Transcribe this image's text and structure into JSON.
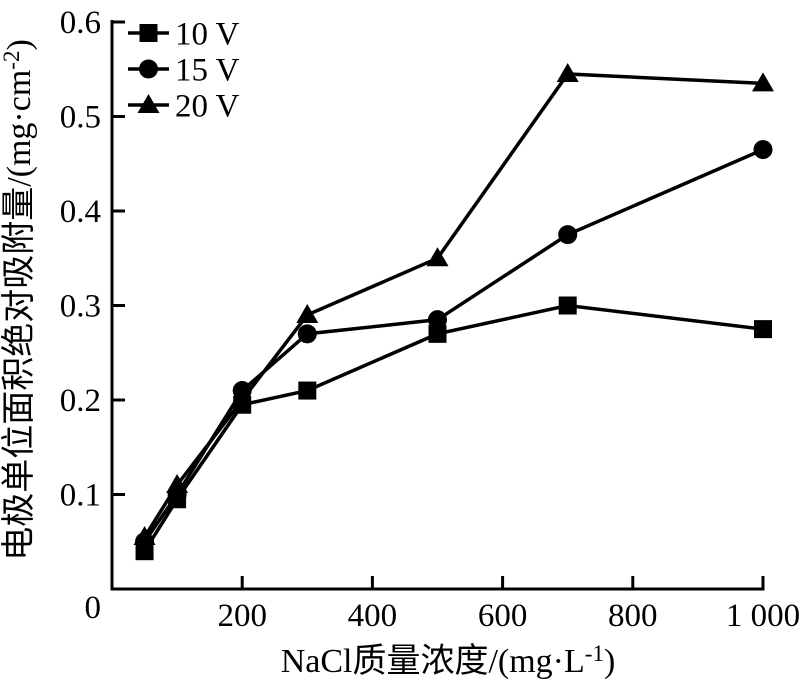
{
  "figure": {
    "background_color": "#ffffff",
    "foreground_color": "#000000"
  },
  "chart_data": {
    "type": "line",
    "title": "",
    "xlabel": "NaCl质量浓度/(mg·L⁻¹)",
    "xlabel_parts": {
      "main": "NaCl质量浓度/(mg·L",
      "sup": "-1",
      "close": ")"
    },
    "ylabel": "电极单位面积绝对吸附量/(mg·cm⁻²)",
    "ylabel_parts": {
      "main": "电极单位面积绝对吸附量/(mg·cm",
      "sup": "-2",
      "close": ")"
    },
    "xlim": [
      0,
      1000
    ],
    "ylim": [
      0,
      0.6
    ],
    "grid": false,
    "legend_position": "upper-left-inside",
    "line_color": "#000000",
    "x_ticks": [
      {
        "value": 200,
        "label": "200"
      },
      {
        "value": 400,
        "label": "400"
      },
      {
        "value": 600,
        "label": "600"
      },
      {
        "value": 800,
        "label": "800"
      },
      {
        "value": 1000,
        "label": "1 000"
      }
    ],
    "y_ticks": [
      {
        "value": 0,
        "label": "0"
      },
      {
        "value": 0.1,
        "label": "0.1"
      },
      {
        "value": 0.2,
        "label": "0.2"
      },
      {
        "value": 0.3,
        "label": "0.3"
      },
      {
        "value": 0.4,
        "label": "0.4"
      },
      {
        "value": 0.5,
        "label": "0.5"
      },
      {
        "value": 0.6,
        "label": "0.6"
      }
    ],
    "series": [
      {
        "name": "10 V",
        "marker": "square",
        "color": "#000000",
        "x": [
          50,
          100,
          200,
          300,
          500,
          700,
          1000
        ],
        "y": [
          0.04,
          0.095,
          0.195,
          0.21,
          0.27,
          0.3,
          0.275
        ]
      },
      {
        "name": "15 V",
        "marker": "circle",
        "color": "#000000",
        "x": [
          50,
          100,
          200,
          300,
          500,
          700,
          1000
        ],
        "y": [
          0.05,
          0.1,
          0.21,
          0.27,
          0.285,
          0.375,
          0.465
        ]
      },
      {
        "name": "20 V",
        "marker": "triangle",
        "color": "#000000",
        "x": [
          50,
          100,
          300,
          500,
          700,
          1000
        ],
        "y": [
          0.055,
          0.11,
          0.29,
          0.35,
          0.545,
          0.535
        ]
      }
    ]
  }
}
